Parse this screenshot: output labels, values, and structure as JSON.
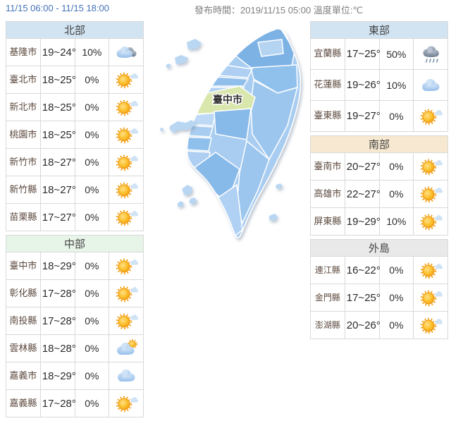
{
  "header": {
    "time_range": "11/15 06:00 - 11/15 18:00",
    "publish_info": "發布時間：2019/11/15 05:00 溫度單位:℃"
  },
  "map": {
    "highlight_label": "臺中市",
    "highlight_color": "#d9e7ad",
    "sea_islands": [
      "馬祖",
      "金門",
      "澎湖"
    ]
  },
  "colors": {
    "link_blue": "#4472b8",
    "north_header_bg": "#d2e4f2",
    "central_header_bg": "#e7f4e8",
    "east_header_bg": "#d2e4f2",
    "south_header_bg": "#f7e9d1",
    "islands_header_bg": "#e9e9e9",
    "city_text": "#5d4a3f"
  },
  "regions": [
    {
      "id": "north",
      "name": "北部",
      "header_bg": "#d2e4f2",
      "rows": [
        {
          "city": "基隆市",
          "temp": "19~24°",
          "rain": "10%",
          "icon": "cloud-gray"
        },
        {
          "city": "臺北市",
          "temp": "18~25°",
          "rain": "0%",
          "icon": "sun-cloud"
        },
        {
          "city": "新北市",
          "temp": "18~25°",
          "rain": "0%",
          "icon": "sun-cloud"
        },
        {
          "city": "桃園市",
          "temp": "18~25°",
          "rain": "0%",
          "icon": "sun-cloud"
        },
        {
          "city": "新竹市",
          "temp": "18~27°",
          "rain": "0%",
          "icon": "sun-cloud"
        },
        {
          "city": "新竹縣",
          "temp": "18~27°",
          "rain": "0%",
          "icon": "sun-cloud"
        },
        {
          "city": "苗栗縣",
          "temp": "17~27°",
          "rain": "0%",
          "icon": "sun-cloud"
        }
      ]
    },
    {
      "id": "central",
      "name": "中部",
      "header_bg": "#e7f4e8",
      "rows": [
        {
          "city": "臺中市",
          "temp": "18~29°",
          "rain": "0%",
          "icon": "sun-cloud"
        },
        {
          "city": "彰化縣",
          "temp": "17~28°",
          "rain": "0%",
          "icon": "sun-cloud"
        },
        {
          "city": "南投縣",
          "temp": "17~28°",
          "rain": "0%",
          "icon": "sun-cloud"
        },
        {
          "city": "雲林縣",
          "temp": "18~28°",
          "rain": "0%",
          "icon": "cloud-sun"
        },
        {
          "city": "嘉義市",
          "temp": "18~29°",
          "rain": "0%",
          "icon": "cloud"
        },
        {
          "city": "嘉義縣",
          "temp": "17~28°",
          "rain": "0%",
          "icon": "sun-cloud"
        }
      ]
    },
    {
      "id": "east",
      "name": "東部",
      "header_bg": "#d2e4f2",
      "rows": [
        {
          "city": "宜蘭縣",
          "temp": "17~25°",
          "rain": "50%",
          "icon": "rain"
        },
        {
          "city": "花蓮縣",
          "temp": "19~26°",
          "rain": "10%",
          "icon": "cloud"
        },
        {
          "city": "臺東縣",
          "temp": "19~27°",
          "rain": "0%",
          "icon": "sun-cloud"
        }
      ]
    },
    {
      "id": "south",
      "name": "南部",
      "header_bg": "#f7e9d1",
      "rows": [
        {
          "city": "臺南市",
          "temp": "20~27°",
          "rain": "0%",
          "icon": "sun-cloud"
        },
        {
          "city": "高雄市",
          "temp": "22~27°",
          "rain": "0%",
          "icon": "sun-cloud"
        },
        {
          "city": "屏東縣",
          "temp": "19~29°",
          "rain": "10%",
          "icon": "sun-cloud"
        }
      ]
    },
    {
      "id": "islands",
      "name": "外島",
      "header_bg": "#e9e9e9",
      "rows": [
        {
          "city": "連江縣",
          "temp": "16~22°",
          "rain": "0%",
          "icon": "sun-cloud"
        },
        {
          "city": "金門縣",
          "temp": "17~25°",
          "rain": "0%",
          "icon": "sun-cloud"
        },
        {
          "city": "澎湖縣",
          "temp": "20~26°",
          "rain": "0%",
          "icon": "sun-cloud"
        }
      ]
    }
  ]
}
